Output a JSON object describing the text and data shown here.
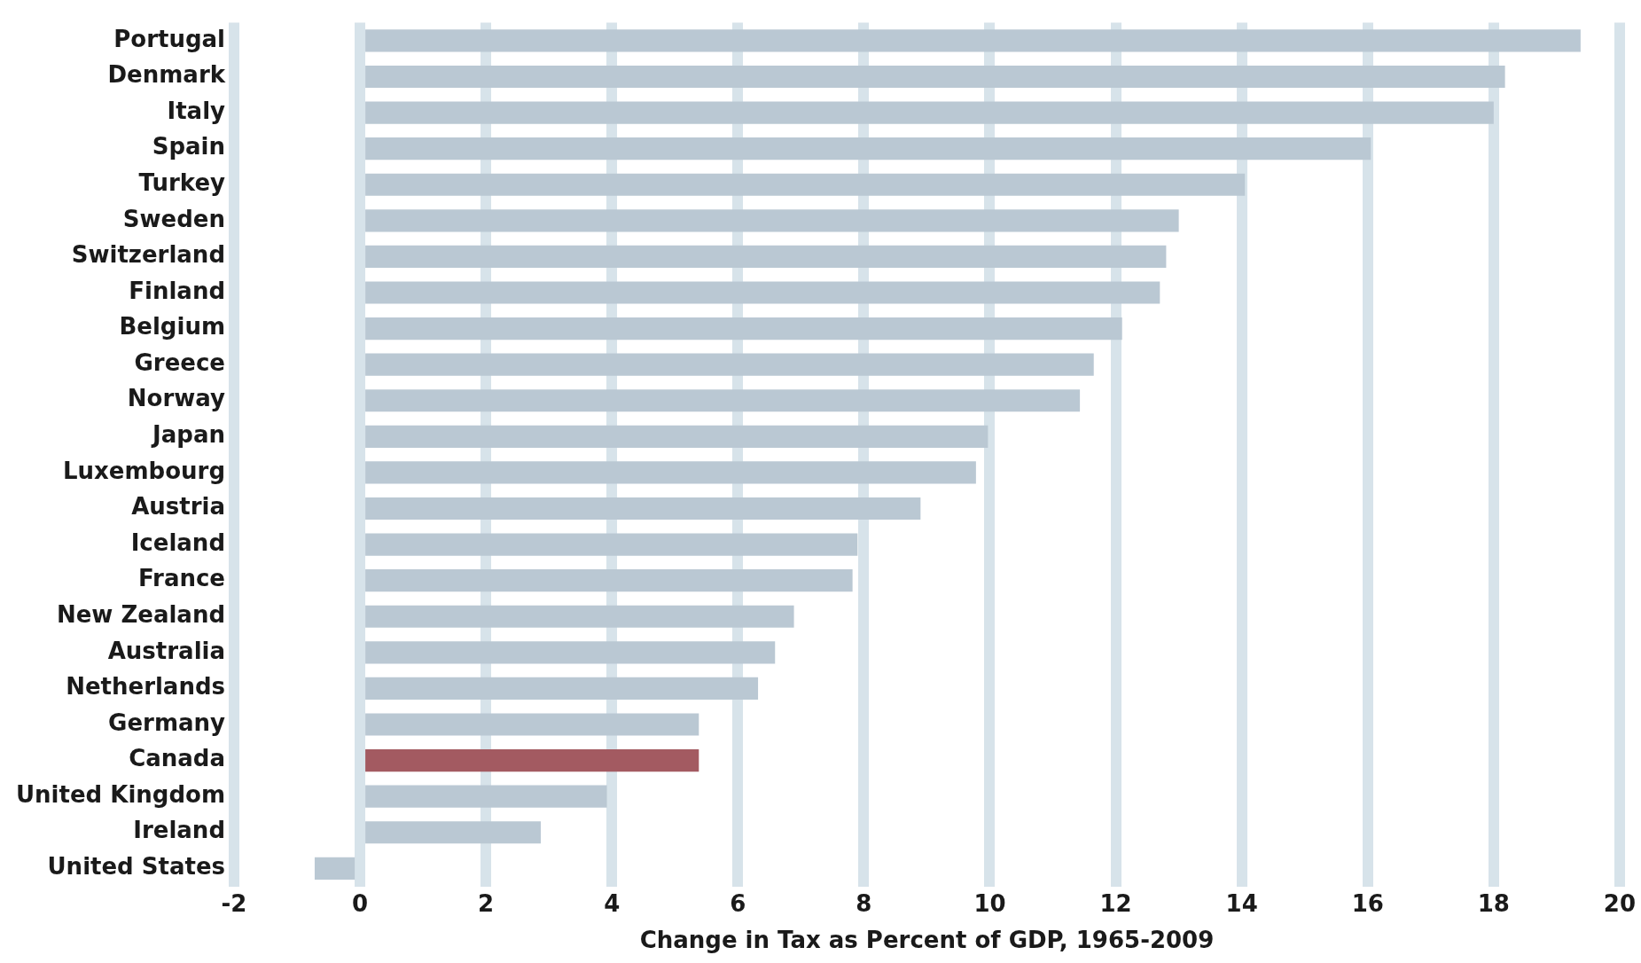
{
  "chart_data": {
    "type": "bar",
    "orientation": "horizontal",
    "xlabel": "Change in Tax as Percent of GDP, 1965-2009",
    "categories": [
      "Portugal",
      "Denmark",
      "Italy",
      "Spain",
      "Turkey",
      "Sweden",
      "Switzerland",
      "Finland",
      "Belgium",
      "Greece",
      "Norway",
      "Japan",
      "Luxembourg",
      "Austria",
      "Iceland",
      "France",
      "New Zealand",
      "Australia",
      "Netherlands",
      "Germany",
      "Canada",
      "United Kingdom",
      "Ireland",
      "United States"
    ],
    "values": [
      19.38,
      18.18,
      18.0,
      16.05,
      14.05,
      13.0,
      12.8,
      12.7,
      12.1,
      11.65,
      11.43,
      9.97,
      9.78,
      8.9,
      7.9,
      7.82,
      6.89,
      6.59,
      6.32,
      5.38,
      5.38,
      3.92,
      2.87,
      -0.72
    ],
    "colors": [
      "#bac8d3",
      "#bac8d3",
      "#bac8d3",
      "#bac8d3",
      "#bac8d3",
      "#bac8d3",
      "#bac8d3",
      "#bac8d3",
      "#bac8d3",
      "#bac8d3",
      "#bac8d3",
      "#bac8d3",
      "#bac8d3",
      "#bac8d3",
      "#bac8d3",
      "#bac8d3",
      "#bac8d3",
      "#bac8d3",
      "#bac8d3",
      "#bac8d3",
      "#a35a61",
      "#bac8d3",
      "#bac8d3",
      "#bac8d3"
    ],
    "xlim": [
      -2,
      20
    ],
    "xticks": [
      -2,
      0,
      2,
      4,
      6,
      8,
      10,
      12,
      14,
      16,
      18,
      20
    ],
    "grid": "x",
    "legend": false
  }
}
